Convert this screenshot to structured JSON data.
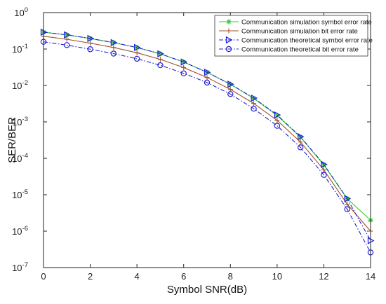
{
  "chart_data": {
    "type": "line",
    "title": "",
    "xlabel": "Symbol SNR(dB)",
    "ylabel": "SER/BER",
    "xlim": [
      0,
      14
    ],
    "ylim": [
      1e-07,
      1
    ],
    "yscale": "log",
    "grid": false,
    "legend_position": "top-right",
    "x_ticks": [
      "0",
      "2",
      "4",
      "6",
      "8",
      "10",
      "12",
      "14"
    ],
    "y_tick_exponents": [
      "-7",
      "-6",
      "-5",
      "-4",
      "-3",
      "-2",
      "-1",
      "0"
    ],
    "y_tick_base": "10",
    "x": [
      0,
      1,
      2,
      3,
      4,
      5,
      6,
      7,
      8,
      9,
      10,
      11,
      12,
      13,
      14
    ],
    "series": [
      {
        "name": "Communication simulation symbol error rate",
        "color": "#33cc33",
        "marker": "star",
        "line_style": "solid",
        "values": [
          0.29,
          0.245,
          0.195,
          0.15,
          0.11,
          0.074,
          0.044,
          0.023,
          0.0108,
          0.0044,
          0.0015,
          0.00038,
          6.6e-05,
          7.8e-06,
          2e-06
        ]
      },
      {
        "name": "Communication simulation bit error rate",
        "color": "#a0522d",
        "marker": "plus",
        "line_style": "solid",
        "values": [
          0.225,
          0.185,
          0.145,
          0.11,
          0.079,
          0.052,
          0.031,
          0.0165,
          0.0078,
          0.0032,
          0.0011,
          0.00028,
          4.8e-05,
          5.5e-06,
          1e-06
        ]
      },
      {
        "name": "Communication theoretical symbol error rate",
        "color": "#1f1fd6",
        "marker": "triangle-right",
        "line_style": "dashdot",
        "values": [
          0.29,
          0.245,
          0.195,
          0.15,
          0.11,
          0.074,
          0.044,
          0.023,
          0.0108,
          0.0045,
          0.00155,
          0.00039,
          6.8e-05,
          7.8e-06,
          5.5e-07
        ]
      },
      {
        "name": "Communication theoretical bit error rate",
        "color": "#1f1fd6",
        "marker": "circle",
        "line_style": "dashdot",
        "values": [
          0.158,
          0.128,
          0.099,
          0.075,
          0.054,
          0.036,
          0.0215,
          0.012,
          0.0058,
          0.0023,
          0.00078,
          0.0002,
          3.5e-05,
          4e-06,
          2.6e-07
        ]
      }
    ]
  }
}
